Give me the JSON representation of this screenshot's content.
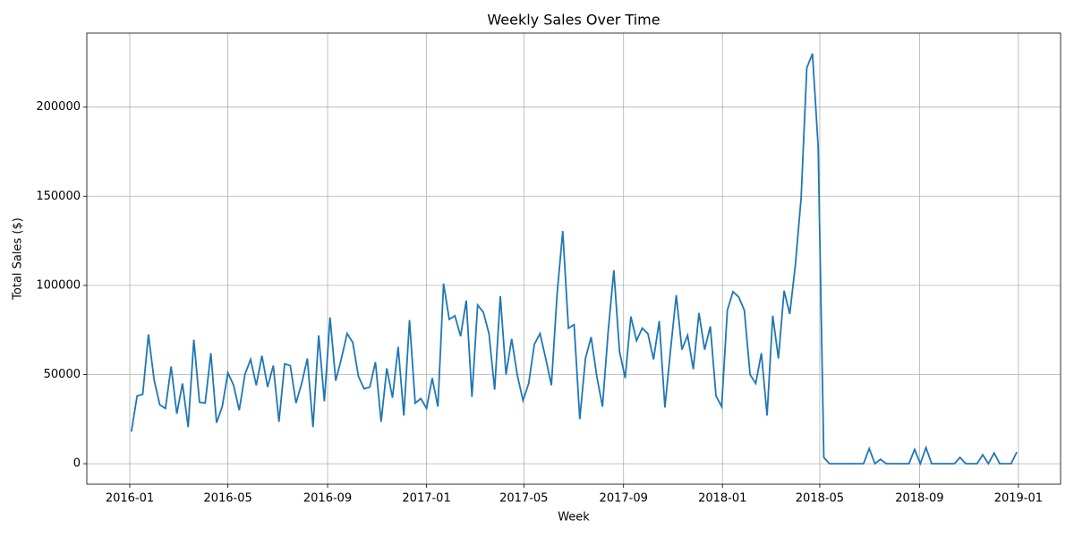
{
  "chart_data": {
    "type": "line",
    "title": "Weekly Sales Over Time",
    "x_label": "Week",
    "y_label": "Total Sales ($)",
    "color": "#1f77b4",
    "grid": true,
    "xlim": [
      "2015-11-09",
      "2019-02-22"
    ],
    "xticks": [
      {
        "value": "2016-01-01",
        "label": "2016-01"
      },
      {
        "value": "2016-05-01",
        "label": "2016-05"
      },
      {
        "value": "2016-09-01",
        "label": "2016-09"
      },
      {
        "value": "2017-01-01",
        "label": "2017-01"
      },
      {
        "value": "2017-05-01",
        "label": "2017-05"
      },
      {
        "value": "2017-09-01",
        "label": "2017-09"
      },
      {
        "value": "2018-01-01",
        "label": "2018-01"
      },
      {
        "value": "2018-05-01",
        "label": "2018-05"
      },
      {
        "value": "2018-09-01",
        "label": "2018-09"
      },
      {
        "value": "2019-01-01",
        "label": "2019-01"
      }
    ],
    "ylim": [
      -11500,
      241500
    ],
    "yticks": [
      0,
      50000,
      100000,
      150000,
      200000
    ],
    "x": [
      "2016-01-03",
      "2016-01-10",
      "2016-01-17",
      "2016-01-24",
      "2016-01-31",
      "2016-02-07",
      "2016-02-14",
      "2016-02-21",
      "2016-02-28",
      "2016-03-06",
      "2016-03-13",
      "2016-03-20",
      "2016-03-27",
      "2016-04-03",
      "2016-04-10",
      "2016-04-17",
      "2016-04-24",
      "2016-05-01",
      "2016-05-08",
      "2016-05-15",
      "2016-05-22",
      "2016-05-29",
      "2016-06-05",
      "2016-06-12",
      "2016-06-19",
      "2016-06-26",
      "2016-07-03",
      "2016-07-10",
      "2016-07-17",
      "2016-07-24",
      "2016-07-31",
      "2016-08-07",
      "2016-08-14",
      "2016-08-21",
      "2016-08-28",
      "2016-09-04",
      "2016-09-11",
      "2016-09-18",
      "2016-09-25",
      "2016-10-02",
      "2016-10-09",
      "2016-10-16",
      "2016-10-23",
      "2016-10-30",
      "2016-11-06",
      "2016-11-13",
      "2016-11-20",
      "2016-11-27",
      "2016-12-04",
      "2016-12-11",
      "2016-12-18",
      "2016-12-25",
      "2017-01-01",
      "2017-01-08",
      "2017-01-15",
      "2017-01-22",
      "2017-01-29",
      "2017-02-05",
      "2017-02-12",
      "2017-02-19",
      "2017-02-26",
      "2017-03-05",
      "2017-03-12",
      "2017-03-19",
      "2017-03-26",
      "2017-04-02",
      "2017-04-09",
      "2017-04-16",
      "2017-04-23",
      "2017-04-30",
      "2017-05-07",
      "2017-05-14",
      "2017-05-21",
      "2017-05-28",
      "2017-06-04",
      "2017-06-11",
      "2017-06-18",
      "2017-06-25",
      "2017-07-02",
      "2017-07-09",
      "2017-07-16",
      "2017-07-23",
      "2017-07-30",
      "2017-08-06",
      "2017-08-13",
      "2017-08-20",
      "2017-08-27",
      "2017-09-03",
      "2017-09-10",
      "2017-09-17",
      "2017-09-24",
      "2017-10-01",
      "2017-10-08",
      "2017-10-15",
      "2017-10-22",
      "2017-10-29",
      "2017-11-05",
      "2017-11-12",
      "2017-11-19",
      "2017-11-26",
      "2017-12-03",
      "2017-12-10",
      "2017-12-17",
      "2017-12-24",
      "2017-12-31",
      "2018-01-07",
      "2018-01-14",
      "2018-01-21",
      "2018-01-28",
      "2018-02-04",
      "2018-02-11",
      "2018-02-18",
      "2018-02-25",
      "2018-03-04",
      "2018-03-11",
      "2018-03-18",
      "2018-03-25",
      "2018-04-01",
      "2018-04-08",
      "2018-04-15",
      "2018-04-22",
      "2018-04-29",
      "2018-05-06",
      "2018-05-13",
      "2018-05-20",
      "2018-05-27",
      "2018-06-03",
      "2018-06-10",
      "2018-06-17",
      "2018-06-24",
      "2018-07-01",
      "2018-07-08",
      "2018-07-15",
      "2018-07-22",
      "2018-07-29",
      "2018-08-05",
      "2018-08-12",
      "2018-08-19",
      "2018-08-26",
      "2018-09-02",
      "2018-09-09",
      "2018-09-16",
      "2018-09-23",
      "2018-09-30",
      "2018-10-07",
      "2018-10-14",
      "2018-10-21",
      "2018-10-28",
      "2018-11-04",
      "2018-11-11",
      "2018-11-18",
      "2018-11-25",
      "2018-12-02",
      "2018-12-09",
      "2018-12-16",
      "2018-12-23",
      "2018-12-30"
    ],
    "values": [
      18000,
      38000,
      39000,
      72500,
      47000,
      33000,
      31000,
      54500,
      28000,
      45000,
      20500,
      69500,
      34500,
      34000,
      62000,
      23000,
      32000,
      51000,
      44000,
      30000,
      50000,
      58500,
      44000,
      60500,
      43000,
      55000,
      23500,
      56000,
      55000,
      34000,
      45000,
      59000,
      20500,
      72000,
      35000,
      82000,
      46500,
      59000,
      73000,
      68000,
      49000,
      42000,
      43000,
      57000,
      23500,
      53500,
      37000,
      65500,
      27000,
      80500,
      34000,
      36500,
      31000,
      48000,
      32000,
      101000,
      81000,
      83000,
      71500,
      91500,
      37500,
      89000,
      85000,
      73000,
      41500,
      94000,
      50000,
      70000,
      49500,
      35500,
      45000,
      67000,
      73000,
      59000,
      44000,
      95000,
      130500,
      76000,
      78000,
      25000,
      59000,
      71000,
      49000,
      32000,
      74000,
      108500,
      63000,
      48000,
      82500,
      69000,
      76000,
      73000,
      58500,
      80000,
      31500,
      64000,
      94500,
      64000,
      72000,
      53000,
      84500,
      64000,
      77000,
      38000,
      32000,
      86000,
      96500,
      93500,
      86000,
      50000,
      45000,
      62000,
      27000,
      83000,
      59000,
      97000,
      84000,
      112000,
      149000,
      222000,
      230000,
      178000,
      3500,
      0,
      0,
      0,
      0,
      0,
      0,
      0,
      8500,
      0,
      2500,
      0,
      0,
      0,
      0,
      0,
      8000,
      0,
      9000,
      0,
      0,
      0,
      0,
      0,
      3500,
      0,
      0,
      0,
      5000,
      0,
      6000,
      0,
      0,
      0,
      6500
    ]
  }
}
